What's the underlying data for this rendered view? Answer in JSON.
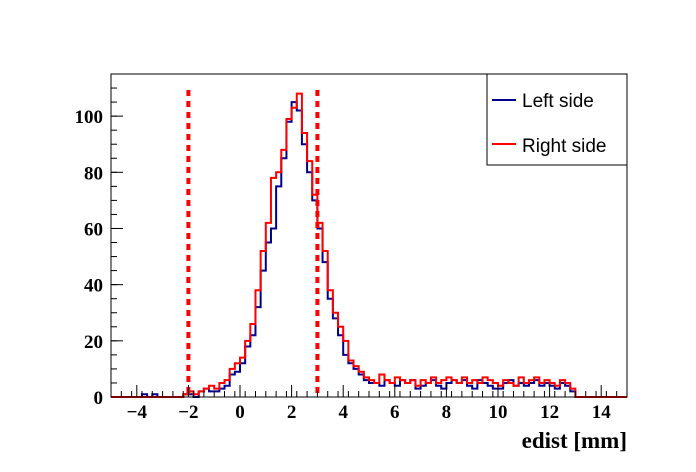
{
  "chart_data": {
    "type": "histogram",
    "xlabel": "edist [mm]",
    "ylabel": "",
    "xlim": [
      -5,
      15
    ],
    "ylim": [
      0,
      115
    ],
    "x_ticks": [
      -4,
      -2,
      0,
      2,
      4,
      6,
      8,
      10,
      12,
      14
    ],
    "y_ticks": [
      0,
      20,
      40,
      60,
      80,
      100
    ],
    "bin_width": 0.2,
    "bin_start": -5,
    "grid": false,
    "legend_position": "top-right",
    "cut_lines": [
      -2,
      3
    ],
    "cut_line_color": "#ff0000",
    "series": [
      {
        "name": "Left side",
        "color": "#00008b",
        "values": [
          0,
          0,
          0,
          0,
          0,
          0,
          1,
          0,
          1,
          0,
          0,
          0,
          0,
          0,
          1,
          1,
          0,
          2,
          3,
          2,
          2,
          3,
          4,
          8,
          9,
          12,
          18,
          22,
          32,
          45,
          55,
          60,
          75,
          85,
          98,
          105,
          102,
          90,
          80,
          70,
          60,
          48,
          35,
          28,
          22,
          15,
          12,
          10,
          8,
          6,
          5,
          5,
          4,
          6,
          5,
          4,
          6,
          5,
          6,
          3,
          4,
          5,
          6,
          4,
          3,
          5,
          6,
          5,
          6,
          4,
          3,
          6,
          5,
          4,
          3,
          3,
          5,
          6,
          4,
          5,
          4,
          5,
          6,
          4,
          5,
          4,
          3,
          5,
          4,
          2,
          0,
          0,
          0,
          0,
          0,
          0,
          0,
          0,
          0,
          0
        ]
      },
      {
        "name": "Right side",
        "color": "#ff0000",
        "values": [
          0,
          0,
          0,
          0,
          0,
          0,
          0,
          0,
          0,
          0,
          0,
          0,
          0,
          0,
          1,
          2,
          1,
          2,
          3,
          4,
          3,
          5,
          6,
          10,
          12,
          14,
          20,
          26,
          38,
          52,
          62,
          78,
          80,
          88,
          99,
          103,
          108,
          94,
          84,
          72,
          62,
          52,
          38,
          30,
          25,
          20,
          13,
          11,
          9,
          7,
          6,
          5,
          8,
          6,
          5,
          7,
          6,
          5,
          6,
          4,
          6,
          5,
          7,
          5,
          6,
          7,
          6,
          5,
          7,
          5,
          6,
          5,
          7,
          6,
          5,
          4,
          6,
          5,
          4,
          7,
          5,
          6,
          7,
          5,
          6,
          5,
          4,
          6,
          5,
          3,
          0,
          0,
          0,
          0,
          0,
          0,
          0,
          0,
          0,
          0
        ]
      }
    ]
  }
}
